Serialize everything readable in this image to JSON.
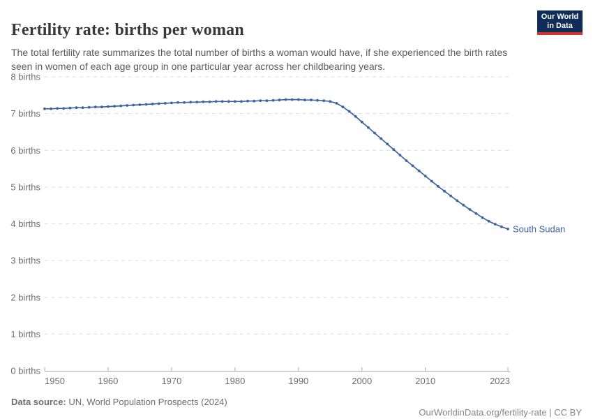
{
  "header": {
    "title": "Fertility rate: births per woman",
    "subtitle": "The total fertility rate summarizes the total number of births a woman would have, if she experienced the birth rates seen in women of each age group in one particular year across her childbearing years.",
    "logo": {
      "line1": "Our World",
      "line2": "in Data",
      "bg_color": "#102d59",
      "accent_color": "#d1342a"
    }
  },
  "footer": {
    "source_label": "Data source:",
    "source_text": " UN, World Population Prospects (2024)",
    "right_link": "OurWorldinData.org/fertility-rate",
    "right_suffix": " | CC BY"
  },
  "chart_data": {
    "type": "line",
    "title": "Fertility rate: births per woman",
    "xlabel": "",
    "ylabel": "births per woman",
    "ylim": [
      0,
      8
    ],
    "xlim": [
      1950,
      2023
    ],
    "grid": "horizontal-dashed",
    "legend_position": "end-of-line-label",
    "colors": {
      "line": "#3e639f",
      "grid": "#dcdcdc",
      "axis": "#a8a8a8",
      "tick_text": "#6e6e6e"
    },
    "yticks": [
      {
        "v": 0,
        "label": "0 births"
      },
      {
        "v": 1,
        "label": "1 births"
      },
      {
        "v": 2,
        "label": "2 births"
      },
      {
        "v": 3,
        "label": "3 births"
      },
      {
        "v": 4,
        "label": "4 births"
      },
      {
        "v": 5,
        "label": "5 births"
      },
      {
        "v": 6,
        "label": "6 births"
      },
      {
        "v": 7,
        "label": "7 births"
      },
      {
        "v": 8,
        "label": "8 births"
      }
    ],
    "xticks": [
      1950,
      1960,
      1970,
      1980,
      1990,
      2000,
      2010,
      2023
    ],
    "x": [
      1950,
      1951,
      1952,
      1953,
      1954,
      1955,
      1956,
      1957,
      1958,
      1959,
      1960,
      1961,
      1962,
      1963,
      1964,
      1965,
      1966,
      1967,
      1968,
      1969,
      1970,
      1971,
      1972,
      1973,
      1974,
      1975,
      1976,
      1977,
      1978,
      1979,
      1980,
      1981,
      1982,
      1983,
      1984,
      1985,
      1986,
      1987,
      1988,
      1989,
      1990,
      1991,
      1992,
      1993,
      1994,
      1995,
      1996,
      1997,
      1998,
      1999,
      2000,
      2001,
      2002,
      2003,
      2004,
      2005,
      2006,
      2007,
      2008,
      2009,
      2010,
      2011,
      2012,
      2013,
      2014,
      2015,
      2016,
      2017,
      2018,
      2019,
      2020,
      2021,
      2022,
      2023
    ],
    "series": [
      {
        "name": "South Sudan",
        "color": "#3e639f",
        "values": [
          7.13,
          7.13,
          7.14,
          7.14,
          7.15,
          7.16,
          7.16,
          7.17,
          7.18,
          7.18,
          7.19,
          7.2,
          7.21,
          7.22,
          7.23,
          7.24,
          7.25,
          7.26,
          7.27,
          7.28,
          7.29,
          7.3,
          7.3,
          7.31,
          7.31,
          7.32,
          7.32,
          7.33,
          7.33,
          7.33,
          7.33,
          7.33,
          7.34,
          7.34,
          7.35,
          7.35,
          7.36,
          7.37,
          7.38,
          7.38,
          7.38,
          7.37,
          7.37,
          7.36,
          7.35,
          7.33,
          7.28,
          7.18,
          7.06,
          6.92,
          6.77,
          6.62,
          6.47,
          6.32,
          6.17,
          6.02,
          5.87,
          5.72,
          5.58,
          5.44,
          5.3,
          5.16,
          5.02,
          4.89,
          4.76,
          4.63,
          4.51,
          4.39,
          4.28,
          4.17,
          4.07,
          3.99,
          3.92,
          3.86
        ]
      }
    ]
  }
}
